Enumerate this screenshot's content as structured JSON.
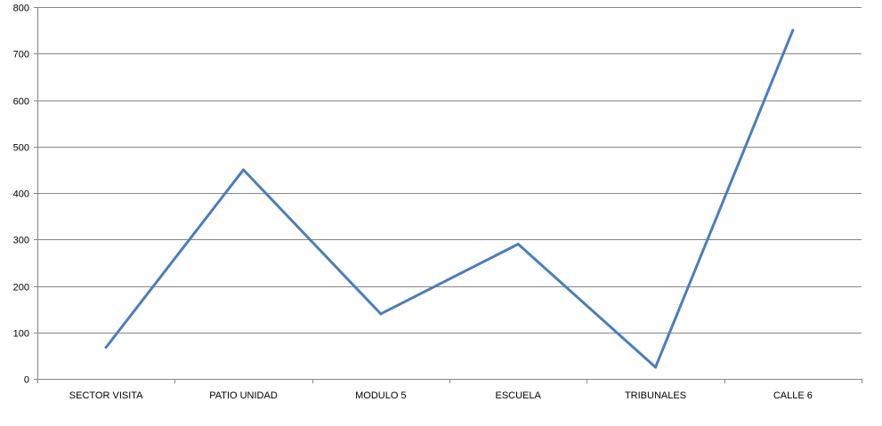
{
  "chart_data": {
    "type": "line",
    "categories": [
      "SECTOR VISITA",
      "PATIO UNIDAD",
      "MODULO 5",
      "ESCUELA",
      "TRIBUNALES",
      "CALLE 6"
    ],
    "series": [
      {
        "values": [
          68,
          450,
          140,
          290,
          25,
          750
        ],
        "color": "#4a7ebb"
      }
    ],
    "y_ticks": [
      "0",
      "100",
      "200",
      "300",
      "400",
      "500",
      "600",
      "700",
      "800"
    ],
    "ylim": [
      0,
      800
    ],
    "grid": true,
    "legend": "none",
    "colors": {
      "line": "#4a7ebb",
      "grid": "#868686",
      "axis": "#868686",
      "text": "#000000"
    }
  }
}
